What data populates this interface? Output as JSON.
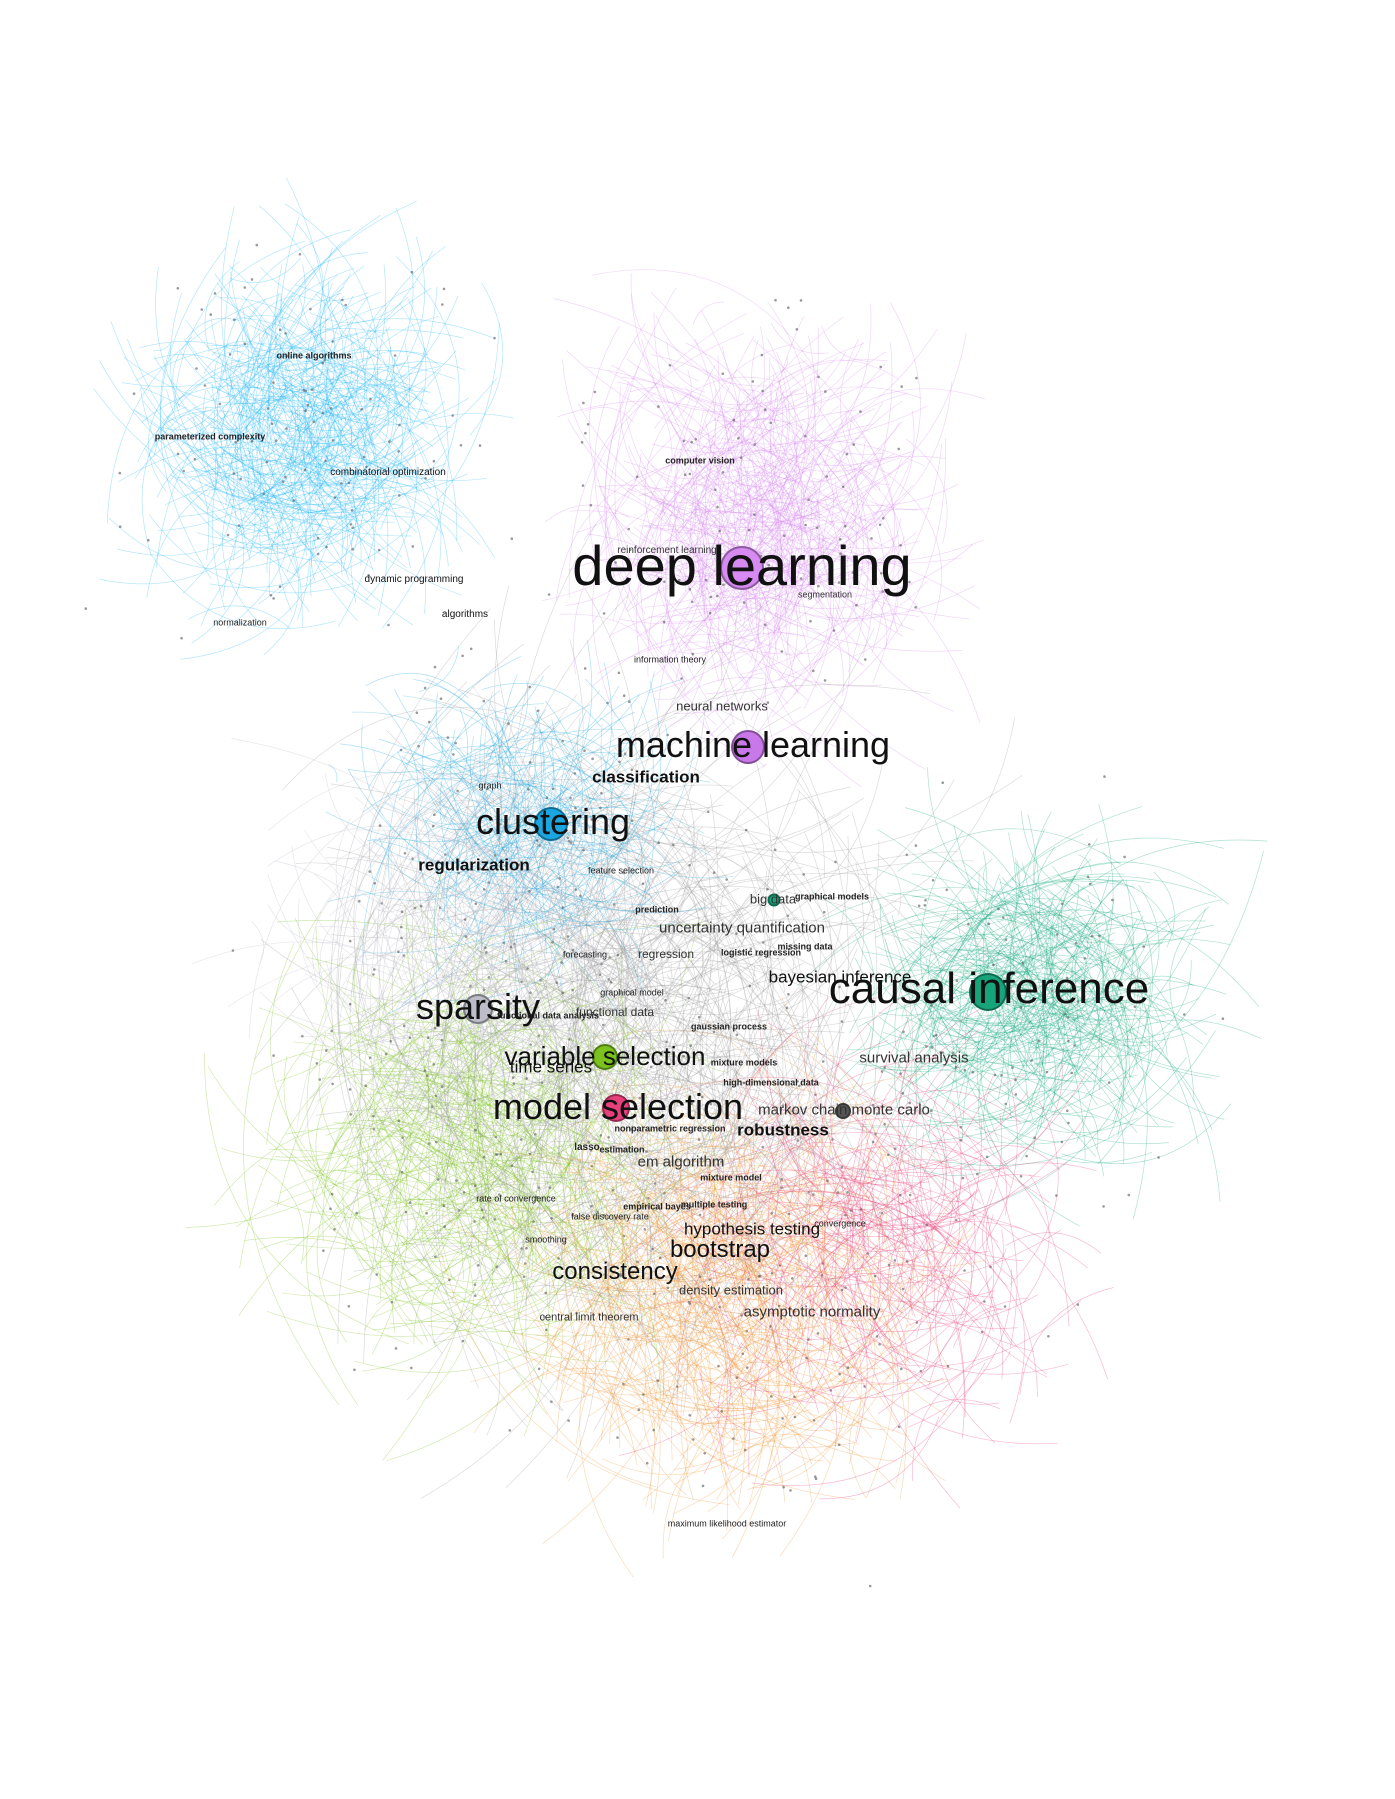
{
  "colors": {
    "online_learning": "#29b6f6",
    "deep_learning": "#d68af2",
    "causal": "#18a97c",
    "model_selection": "#e8407a",
    "variable_selection": "#7bc21e",
    "clustering": "#1aa6e0",
    "sparsity": "#b9b9c8",
    "consistency": "#f0973a",
    "gray": "#9a9a9a"
  },
  "labels": {
    "deep_learning": "deep learning",
    "causal_inference": "causal inference",
    "model_selection": "model selection",
    "machine_learning": "machine learning",
    "clustering": "clustering",
    "variable_selection": "variable selection",
    "sparsity": "sparsity",
    "consistency": "consistency",
    "bootstrap": "bootstrap",
    "hypothesis_testing": "hypothesis testing",
    "bayesian_inference": "bayesian inference",
    "classification": "classification",
    "regularization": "regularization",
    "robustness": "robustness",
    "time_series": "time series",
    "markov_chain_monte_carlo": "markov chain monte carlo",
    "em_algorithm": "em algorithm",
    "uncertainty_quantification": "uncertainty quantification",
    "neural_networks": "neural networks",
    "survival_analysis": "survival analysis",
    "big_data": "big data",
    "density_estimation": "density estimation",
    "asymptotic_normality": "asymptotic normality",
    "central_limit_theorem": "central limit theorem",
    "regression": "regression",
    "functional_data": "functional data",
    "reinforcement_learning": "reinforcement learning",
    "segmentation": "segmentation",
    "computer_vision": "computer vision",
    "online_algorithms": "online algorithms",
    "parameterized_complexity": "parameterized complexity",
    "combinatorial_optimization": "combinatorial optimization",
    "dynamic_programming": "dynamic programming",
    "algorithms": "algorithms",
    "prediction": "prediction",
    "lasso": "lasso",
    "estimation": "estimation",
    "multiple_testing": "multiple testing",
    "empirical_bayes": "empirical bayes",
    "mixture_model": "mixture model",
    "missing_data": "missing data",
    "logistic_regression": "logistic regression",
    "graphical_models": "graphical models",
    "gaussian_process": "gaussian process",
    "high_dimensional_data": "high-dimensional data",
    "nonparametric_regression": "nonparametric regression",
    "mixture_models": "mixture models",
    "information_theory": "information theory",
    "feature_selection": "feature selection",
    "graph": "graph",
    "functional_data_analysis": "functional data analysis",
    "rate_of_convergence": "rate of convergence",
    "false_discovery_rate": "false discovery rate",
    "smoothing": "smoothing",
    "forecasting": "forecasting",
    "maximum_likelihood_estimator": "maximum likelihood estimator",
    "convergence": "convergence",
    "graphical_model": "graphical model",
    "normalization": "normalization"
  }
}
